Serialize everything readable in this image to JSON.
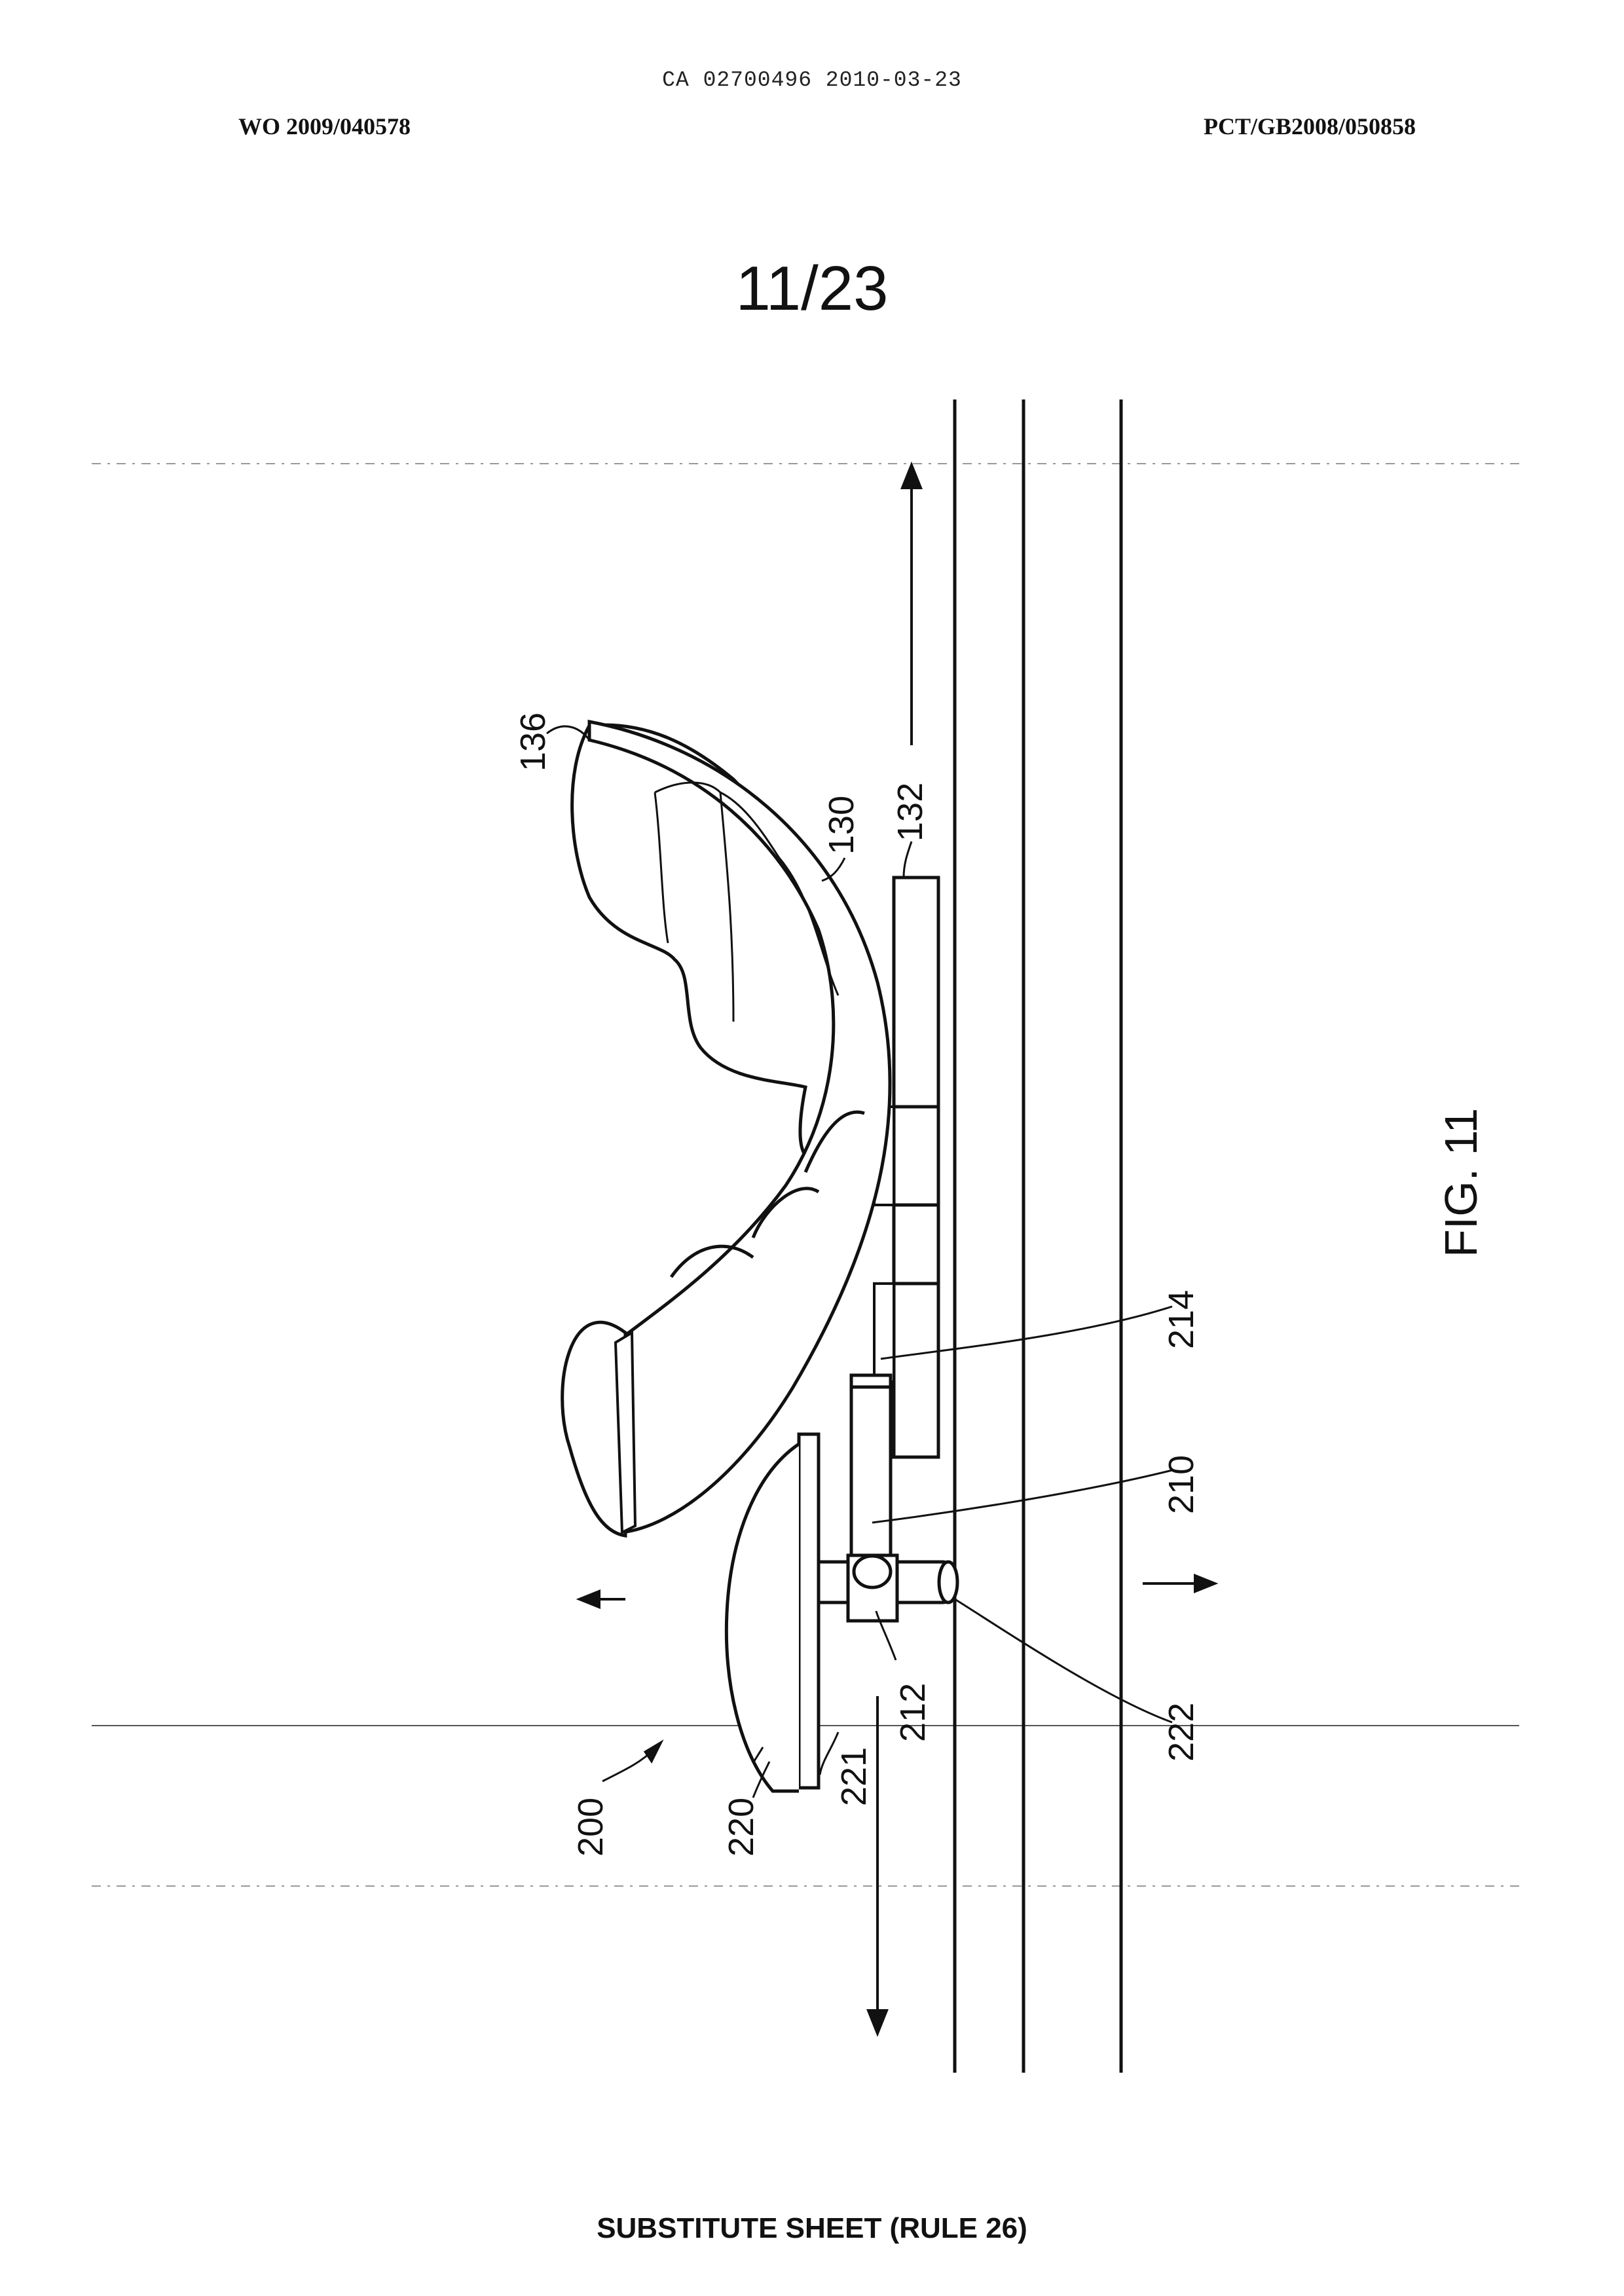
{
  "header": {
    "center": "CA 02700496 2010-03-23",
    "left": "WO 2009/040578",
    "right": "PCT/GB2008/050858"
  },
  "sheet_number": "11/23",
  "figure_label": "FIG. 11",
  "reference_labels": {
    "l136": "136",
    "l130": "130",
    "l132": "132",
    "l214": "214",
    "l210": "210",
    "l212": "212",
    "l222": "222",
    "l221": "221",
    "l220": "220",
    "l200": "200"
  },
  "footer": "SUBSTITUTE SHEET (RULE 26)"
}
